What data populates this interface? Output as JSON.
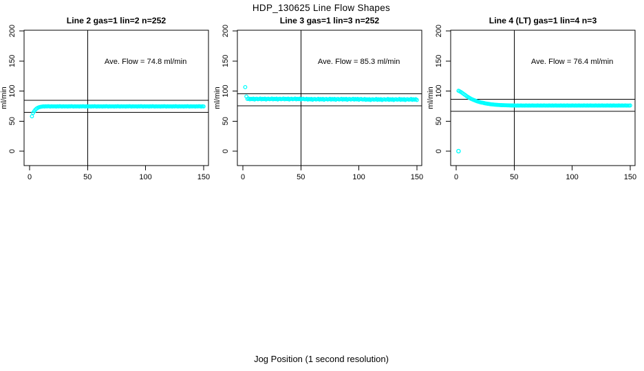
{
  "page": {
    "title": "HDP_130625  Line Flow Shapes",
    "bottom_axis_label": "Jog Position (1 second resolution)"
  },
  "chart_data": {
    "type": "scatter",
    "title": "HDP_130625  Line Flow Shapes",
    "xlabel": "Jog Position (1 second resolution)",
    "ylabel": "ml/min",
    "x_ticks": [
      0,
      50,
      100,
      150
    ],
    "y_ticks": [
      0,
      50,
      100,
      150,
      200
    ],
    "xlim": [
      -5,
      157
    ],
    "ylim": [
      -24,
      201
    ],
    "grid": false,
    "legend": "none",
    "marker": "open-circle",
    "marker_color": "#00FFFF",
    "axis_color": "#000000",
    "panels": [
      {
        "title": "Line 2 gas=1 lin=2 n=252",
        "ave_flow": 74.8,
        "ave_flow_label": "Ave. Flow =  74.8  ml/min",
        "ref_lines_y": [
          64.8,
          84.8
        ],
        "ref_line_x": 50,
        "outliers": [],
        "series": {
          "x_start": 2,
          "x_step": 1,
          "y": [
            58,
            63.5,
            66.5,
            69,
            70.8,
            72,
            72.9,
            73.5,
            73.9,
            74.2,
            74.5,
            74.3,
            74.6,
            74.4,
            74.7,
            74.5,
            74.2,
            74.6,
            74.4,
            74.5,
            74.5,
            74.3,
            74.6,
            74.4,
            74.7,
            74.5,
            74.2,
            74.6,
            74.4,
            74.5,
            74.5,
            74.3,
            74.6,
            74.4,
            74.7,
            74.5,
            74.2,
            74.6,
            74.4,
            74.5,
            74.5,
            74.3,
            74.6,
            74.4,
            74.7,
            74.5,
            74.2,
            74.6,
            74.4,
            74.5,
            74.5,
            74.3,
            74.6,
            74.4,
            74.7,
            74.5,
            74.2,
            74.6,
            74.4,
            74.5,
            74.5,
            74.3,
            74.6,
            74.4,
            74.7,
            74.5,
            74.2,
            74.6,
            74.4,
            74.5,
            74.5,
            74.3,
            74.6,
            74.4,
            74.7,
            74.5,
            74.2,
            74.6,
            74.4,
            74.5,
            74.5,
            74.3,
            74.6,
            74.4,
            74.7,
            74.5,
            74.2,
            74.6,
            74.4,
            74.5,
            74.5,
            74.3,
            74.6,
            74.4,
            74.7,
            74.5,
            74.2,
            74.6,
            74.4,
            74.5,
            74.5,
            74.3,
            74.6,
            74.4,
            74.7,
            74.5,
            74.2,
            74.6,
            74.4,
            74.5,
            74.5,
            74.3,
            74.6,
            74.4,
            74.7,
            74.5,
            74.2,
            74.6,
            74.4,
            74.5,
            74.5,
            74.3,
            74.6,
            74.4,
            74.7,
            74.5,
            74.2,
            74.6,
            74.4,
            74.5,
            74.5,
            74.3,
            74.6,
            74.4,
            74.7,
            74.5,
            74.2,
            74.6,
            74.4,
            74.5,
            74.5,
            74.3,
            74.6,
            74.4,
            74.7,
            74.5,
            74.2,
            74.6,
            74.4
          ]
        }
      },
      {
        "title": "Line 3 gas=1 lin=3 n=252",
        "ave_flow": 85.3,
        "ave_flow_label": "Ave. Flow =  85.3  ml/min",
        "ref_lines_y": [
          75.3,
          95.3
        ],
        "ref_line_x": 50,
        "outliers": [],
        "series": {
          "x_start": 2,
          "x_step": 1,
          "y": [
            106.5,
            91,
            86.8,
            87.5,
            86.2,
            87.1,
            86.5,
            87.3,
            85.9,
            86.9,
            87.2,
            86.4,
            86.8,
            87.5,
            86.2,
            87.1,
            86.5,
            87.3,
            85.9,
            86.9,
            87.2,
            86.4,
            86.8,
            87.5,
            86.2,
            87.1,
            86.5,
            87.3,
            85.9,
            86.9,
            87.2,
            86.4,
            86.8,
            87.5,
            86.2,
            87.1,
            86.5,
            87.3,
            85.9,
            86.9,
            87.2,
            86.4,
            86.8,
            87.5,
            86.2,
            87.1,
            86.5,
            87.3,
            85.9,
            86.9,
            87.2,
            86.4,
            86.4,
            87.1,
            85.8,
            86.7,
            86.1,
            86.9,
            85.5,
            86.5,
            86.8,
            86.0,
            86.4,
            87.1,
            85.8,
            86.7,
            86.1,
            86.9,
            85.5,
            86.5,
            86.8,
            86.0,
            86.4,
            87.1,
            85.8,
            86.7,
            86.1,
            86.9,
            85.5,
            86.5,
            86.8,
            86.0,
            86.4,
            87.1,
            85.8,
            86.7,
            86.1,
            86.9,
            85.5,
            86.5,
            86.8,
            86.0,
            86.4,
            87.1,
            85.8,
            86.7,
            86.1,
            86.9,
            85.5,
            86.5,
            86.8,
            86.0,
            86.0,
            86.7,
            85.4,
            86.3,
            85.7,
            86.5,
            85.1,
            86.1,
            86.4,
            85.6,
            86.0,
            86.7,
            85.4,
            86.3,
            85.7,
            86.5,
            85.1,
            86.1,
            86.4,
            85.6,
            86.0,
            86.7,
            85.4,
            86.3,
            85.7,
            86.5,
            85.1,
            86.1,
            86.4,
            85.6,
            86.0,
            86.7,
            85.4,
            86.3,
            85.7,
            86.5,
            85.1,
            86.1,
            86.4,
            85.6,
            86.0,
            86.7,
            85.4,
            86.3,
            85.7,
            86.5,
            85.1
          ]
        }
      },
      {
        "title": "Line 4 (LT) gas=1 lin=4 n=3",
        "ave_flow": 76.4,
        "ave_flow_label": "Ave. Flow =  76.4  ml/min",
        "ref_lines_y": [
          66.4,
          86.4
        ],
        "ref_line_x": 50,
        "outliers": [
          [
            2,
            0
          ]
        ],
        "series": {
          "x_start": 2,
          "x_step": 1,
          "y": [
            100.5,
            99.6,
            98.5,
            97.2,
            95.8,
            94.4,
            93.0,
            91.6,
            90.3,
            89.1,
            88.0,
            87.0,
            86.1,
            85.2,
            84.4,
            83.7,
            83.0,
            82.4,
            81.8,
            81.3,
            80.8,
            80.4,
            80.0,
            79.6,
            79.2,
            78.9,
            78.6,
            78.3,
            78.0,
            77.8,
            77.6,
            77.4,
            77.2,
            77.0,
            76.9,
            76.8,
            76.7,
            76.6,
            76.5,
            76.4,
            76.3,
            76.3,
            76.2,
            76.2,
            76.1,
            76.1,
            76.0,
            76.0,
            76.0,
            75.9,
            75.8,
            76.0,
            75.8,
            75.9,
            76.0,
            75.8,
            75.9,
            75.8,
            76.0,
            75.9,
            75.8,
            76.0,
            75.8,
            75.9,
            76.0,
            75.8,
            75.9,
            75.8,
            76.0,
            75.9,
            75.8,
            76.0,
            75.8,
            75.9,
            76.0,
            75.8,
            75.9,
            75.8,
            76.0,
            75.9,
            75.8,
            76.0,
            75.8,
            75.9,
            76.0,
            75.8,
            75.9,
            75.8,
            76.0,
            75.9,
            75.8,
            76.0,
            75.8,
            75.9,
            76.0,
            75.8,
            75.9,
            75.8,
            76.0,
            75.9,
            75.8,
            76.0,
            75.8,
            75.9,
            76.0,
            75.8,
            75.9,
            75.8,
            76.0,
            75.9,
            75.8,
            76.0,
            75.8,
            75.9,
            76.0,
            75.8,
            75.9,
            75.8,
            76.0,
            75.9,
            75.8,
            76.0,
            75.8,
            75.9,
            76.0,
            75.8,
            75.9,
            75.8,
            76.0,
            75.9,
            75.8,
            76.0,
            75.8,
            75.9,
            76.0,
            75.8,
            75.9,
            75.8,
            76.0,
            75.9,
            75.8,
            76.0,
            75.8,
            75.9,
            76.0,
            75.8,
            75.9,
            75.8,
            76.0
          ]
        }
      }
    ]
  }
}
